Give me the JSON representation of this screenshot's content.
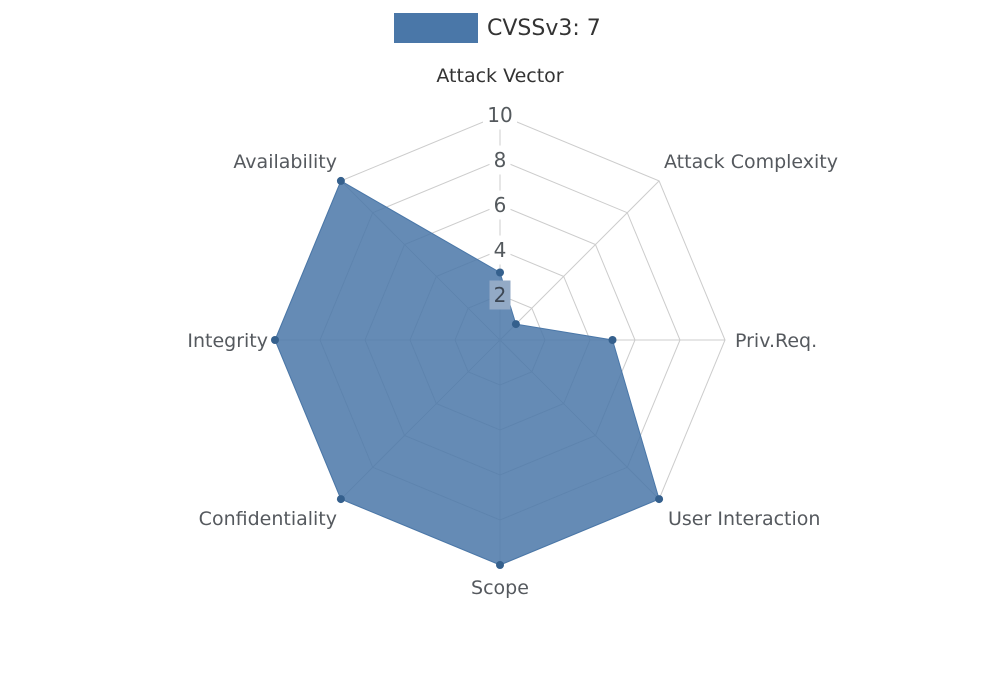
{
  "chart_data": {
    "type": "radar",
    "categories": [
      "Attack Vector",
      "Attack Complexity",
      "Priv.Req.",
      "User Interaction",
      "Scope",
      "Confidentiality",
      "Integrity",
      "Availability"
    ],
    "series": [
      {
        "name": "CVSSv3: 7",
        "color": "#4a77a8",
        "fill_opacity": 0.85,
        "values": [
          3,
          1,
          5,
          10,
          10,
          10,
          10,
          10
        ]
      }
    ],
    "radial_ticks": [
      2,
      4,
      6,
      8,
      10
    ],
    "rlim": [
      0,
      10
    ],
    "grid": true,
    "grid_shape": "polygon",
    "legend_position": "top",
    "colors": {
      "grid": "#cccccc",
      "axis_label": "#55595e",
      "axis_label_primary": "#333333",
      "tick_text": "#54595d",
      "tick_bg": "#ffffff",
      "tick_covered_bg": "#93aac6",
      "tick_covered_text": "#3d4754",
      "dot": "#35608d",
      "background": "#ffffff",
      "legend_text": "#333333"
    }
  }
}
